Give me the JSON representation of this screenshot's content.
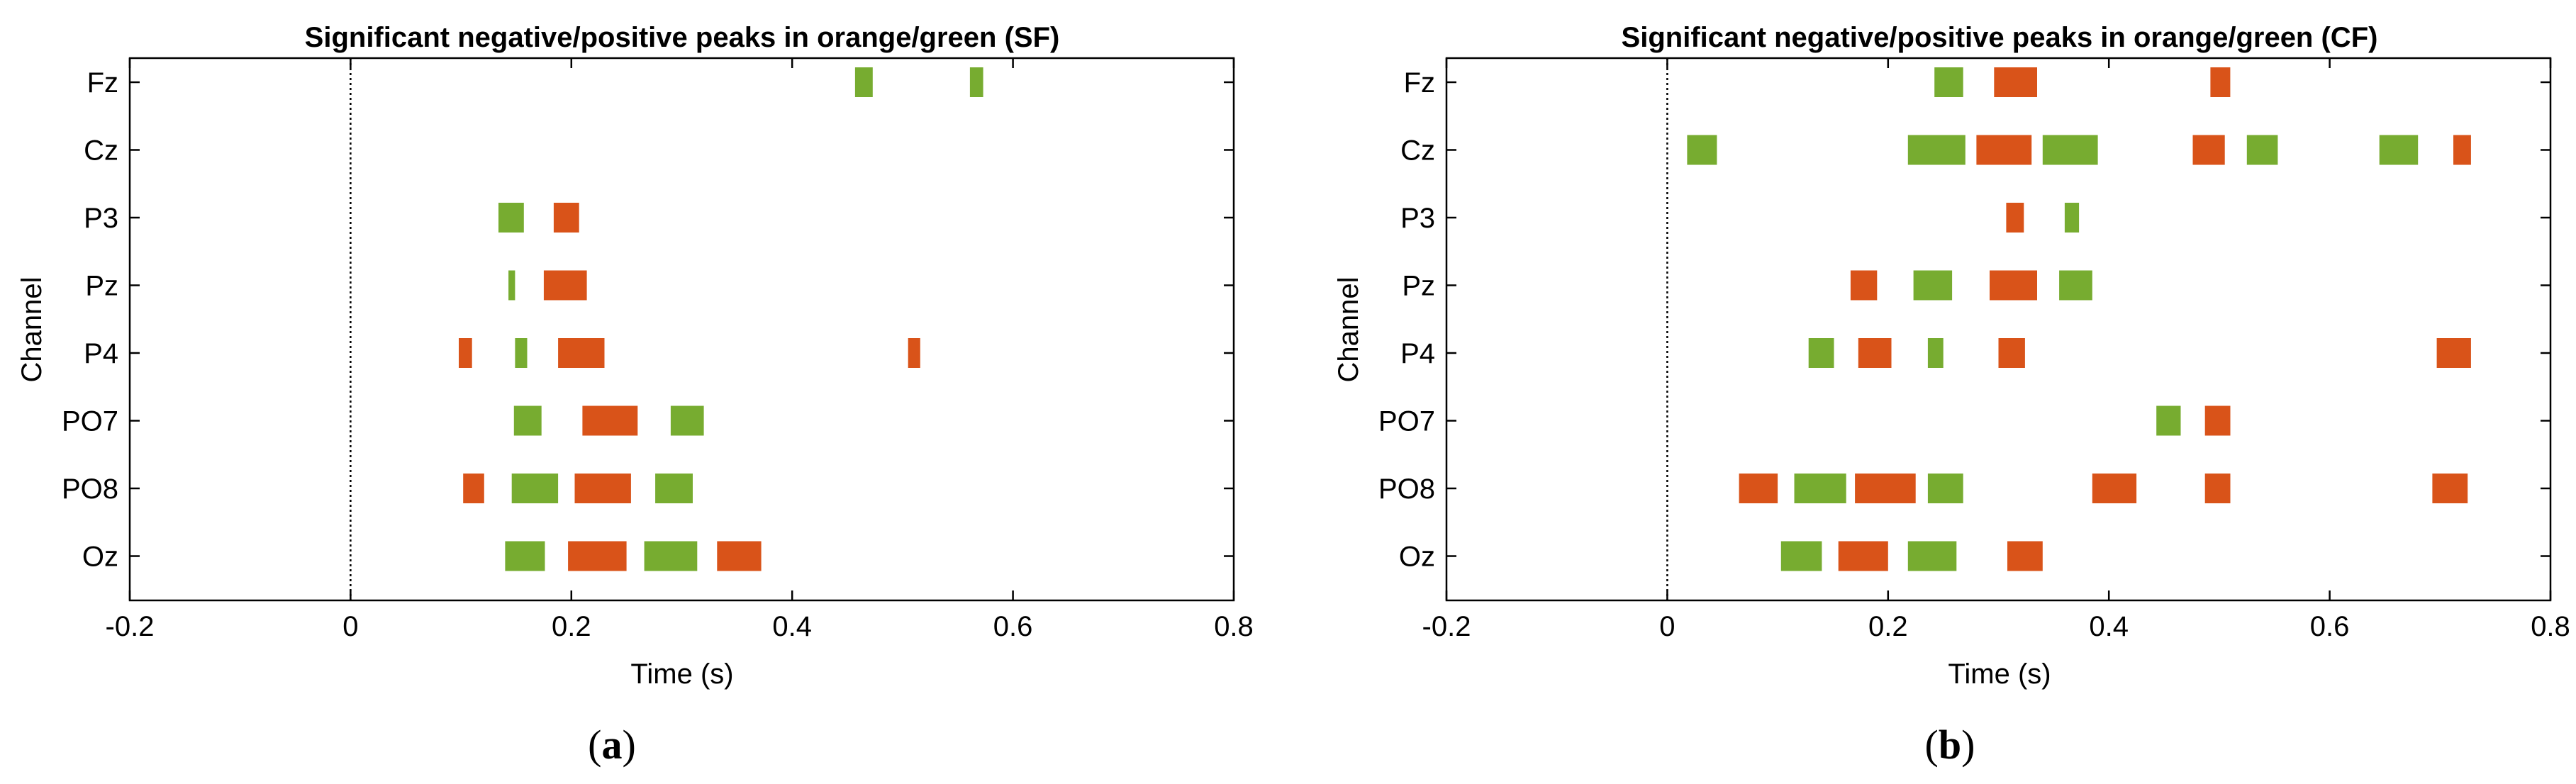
{
  "chart_data": [
    {
      "type": "bar",
      "subtype": "channel-time raster",
      "panel": "a",
      "caption": {
        "open": "(",
        "letter": "a",
        "close": ")"
      },
      "title": "Significant negative/positive peaks in orange/green (SF)",
      "xlabel": "Time (s)",
      "ylabel": "Channel",
      "xlim": [
        -0.2,
        0.8
      ],
      "xticks": [
        -0.2,
        0,
        0.2,
        0.4,
        0.6,
        0.8
      ],
      "xtick_labels": [
        "-0.2",
        "0",
        "0.2",
        "0.4",
        "0.6",
        "0.8"
      ],
      "zero_line": 0,
      "categories": [
        "Fz",
        "Cz",
        "P3",
        "Pz",
        "P4",
        "PO7",
        "PO8",
        "Oz"
      ],
      "series": [
        {
          "name": "negative peaks",
          "color": "#D95319",
          "intervals": [
            {
              "channel": "P3",
              "start": 0.184,
              "end": 0.207
            },
            {
              "channel": "Pz",
              "start": 0.175,
              "end": 0.214
            },
            {
              "channel": "P4",
              "start": 0.098,
              "end": 0.11
            },
            {
              "channel": "P4",
              "start": 0.188,
              "end": 0.23
            },
            {
              "channel": "P4",
              "start": 0.505,
              "end": 0.516
            },
            {
              "channel": "PO7",
              "start": 0.21,
              "end": 0.26
            },
            {
              "channel": "PO8",
              "start": 0.102,
              "end": 0.121
            },
            {
              "channel": "PO8",
              "start": 0.203,
              "end": 0.254
            },
            {
              "channel": "Oz",
              "start": 0.197,
              "end": 0.25
            },
            {
              "channel": "Oz",
              "start": 0.332,
              "end": 0.372
            }
          ]
        },
        {
          "name": "positive peaks",
          "color": "#77AC30",
          "intervals": [
            {
              "channel": "Fz",
              "start": 0.457,
              "end": 0.473
            },
            {
              "channel": "Fz",
              "start": 0.561,
              "end": 0.573
            },
            {
              "channel": "P3",
              "start": 0.134,
              "end": 0.157
            },
            {
              "channel": "Pz",
              "start": 0.143,
              "end": 0.149
            },
            {
              "channel": "P4",
              "start": 0.149,
              "end": 0.16
            },
            {
              "channel": "PO7",
              "start": 0.148,
              "end": 0.173
            },
            {
              "channel": "PO7",
              "start": 0.29,
              "end": 0.32
            },
            {
              "channel": "PO8",
              "start": 0.146,
              "end": 0.188
            },
            {
              "channel": "PO8",
              "start": 0.276,
              "end": 0.31
            },
            {
              "channel": "Oz",
              "start": 0.14,
              "end": 0.176
            },
            {
              "channel": "Oz",
              "start": 0.266,
              "end": 0.314
            }
          ]
        }
      ]
    },
    {
      "type": "bar",
      "subtype": "channel-time raster",
      "panel": "b",
      "caption": {
        "open": "(",
        "letter": "b",
        "close": ")"
      },
      "title": "Significant negative/positive peaks in orange/green (CF)",
      "xlabel": "Time (s)",
      "ylabel": "Channel",
      "xlim": [
        -0.2,
        0.8
      ],
      "xticks": [
        -0.2,
        0,
        0.2,
        0.4,
        0.6,
        0.8
      ],
      "xtick_labels": [
        "-0.2",
        "0",
        "0.2",
        "0.4",
        "0.6",
        "0.8"
      ],
      "zero_line": 0,
      "categories": [
        "Fz",
        "Cz",
        "P3",
        "Pz",
        "P4",
        "PO7",
        "PO8",
        "Oz"
      ],
      "series": [
        {
          "name": "negative peaks",
          "color": "#D95319",
          "intervals": [
            {
              "channel": "Fz",
              "start": 0.296,
              "end": 0.335
            },
            {
              "channel": "Fz",
              "start": 0.492,
              "end": 0.51
            },
            {
              "channel": "Cz",
              "start": 0.28,
              "end": 0.33
            },
            {
              "channel": "Cz",
              "start": 0.476,
              "end": 0.505
            },
            {
              "channel": "Cz",
              "start": 0.712,
              "end": 0.728
            },
            {
              "channel": "P3",
              "start": 0.307,
              "end": 0.323
            },
            {
              "channel": "Pz",
              "start": 0.166,
              "end": 0.19
            },
            {
              "channel": "Pz",
              "start": 0.292,
              "end": 0.335
            },
            {
              "channel": "P4",
              "start": 0.173,
              "end": 0.203
            },
            {
              "channel": "P4",
              "start": 0.3,
              "end": 0.324
            },
            {
              "channel": "P4",
              "start": 0.697,
              "end": 0.728
            },
            {
              "channel": "PO7",
              "start": 0.487,
              "end": 0.51
            },
            {
              "channel": "PO8",
              "start": 0.065,
              "end": 0.1
            },
            {
              "channel": "PO8",
              "start": 0.17,
              "end": 0.225
            },
            {
              "channel": "PO8",
              "start": 0.385,
              "end": 0.425
            },
            {
              "channel": "PO8",
              "start": 0.487,
              "end": 0.51
            },
            {
              "channel": "PO8",
              "start": 0.693,
              "end": 0.725
            },
            {
              "channel": "Oz",
              "start": 0.155,
              "end": 0.2
            },
            {
              "channel": "Oz",
              "start": 0.308,
              "end": 0.34
            }
          ]
        },
        {
          "name": "positive peaks",
          "color": "#77AC30",
          "intervals": [
            {
              "channel": "Fz",
              "start": 0.242,
              "end": 0.268
            },
            {
              "channel": "Cz",
              "start": 0.018,
              "end": 0.045
            },
            {
              "channel": "Cz",
              "start": 0.218,
              "end": 0.27
            },
            {
              "channel": "Cz",
              "start": 0.34,
              "end": 0.39
            },
            {
              "channel": "Cz",
              "start": 0.525,
              "end": 0.553
            },
            {
              "channel": "Cz",
              "start": 0.645,
              "end": 0.68
            },
            {
              "channel": "P3",
              "start": 0.36,
              "end": 0.373
            },
            {
              "channel": "Pz",
              "start": 0.223,
              "end": 0.258
            },
            {
              "channel": "Pz",
              "start": 0.355,
              "end": 0.385
            },
            {
              "channel": "P4",
              "start": 0.128,
              "end": 0.151
            },
            {
              "channel": "P4",
              "start": 0.236,
              "end": 0.25
            },
            {
              "channel": "PO7",
              "start": 0.443,
              "end": 0.465
            },
            {
              "channel": "PO8",
              "start": 0.115,
              "end": 0.162
            },
            {
              "channel": "PO8",
              "start": 0.236,
              "end": 0.268
            },
            {
              "channel": "Oz",
              "start": 0.103,
              "end": 0.14
            },
            {
              "channel": "Oz",
              "start": 0.218,
              "end": 0.262
            }
          ]
        }
      ]
    }
  ]
}
